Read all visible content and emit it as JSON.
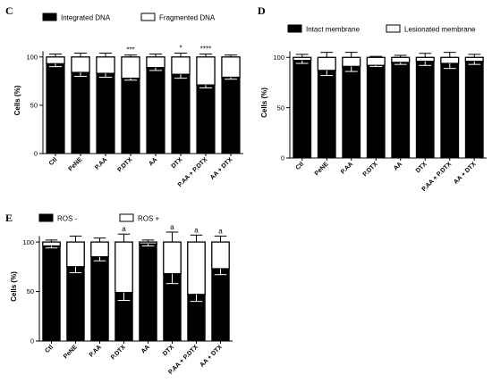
{
  "panels": [
    {
      "letter": "C",
      "chart_data": {
        "type": "bar",
        "stacked": true,
        "categories": [
          "Ctl",
          "PeNE",
          "P.AA",
          "P.DTX",
          "AA",
          "DTX",
          "P.AA + P.DTX",
          "AA + DTX"
        ],
        "series": [
          {
            "name": "Integrated DNA",
            "color": "#000000",
            "values": [
              93,
              84,
              83,
              78,
              89,
              82,
              71,
              79
            ],
            "error": [
              3,
              4,
              4,
              2,
              3,
              4,
              3,
              2
            ]
          },
          {
            "name": "Fragmented DNA",
            "color": "#ffffff",
            "values": [
              7,
              16,
              17,
              22,
              11,
              18,
              29,
              21
            ],
            "error": [
              3,
              4,
              4,
              2,
              3,
              4,
              3,
              2
            ]
          }
        ],
        "annotations": [
          "",
          "",
          "",
          "***",
          "",
          "*",
          "****",
          ""
        ],
        "ylabel": "Cells (%)",
        "yticks": [
          0,
          50,
          100
        ],
        "ylim": [
          0,
          110
        ],
        "legend_position": "top"
      }
    },
    {
      "letter": "D",
      "chart_data": {
        "type": "bar",
        "stacked": true,
        "categories": [
          "Ctl",
          "PeNE",
          "P.AA",
          "P.DTX",
          "AA",
          "DTX",
          "P.AA + P.DTX",
          "AA + DTX"
        ],
        "series": [
          {
            "name": "Intact membrane",
            "color": "#000000",
            "values": [
              97,
              87,
              91,
              92,
              95,
              96,
              94,
              96
            ],
            "error": [
              3,
              5,
              5,
              1,
              2,
              4,
              5,
              3
            ]
          },
          {
            "name": "Lesionated membrane",
            "color": "#ffffff",
            "values": [
              3,
              13,
              9,
              8,
              5,
              4,
              6,
              4
            ],
            "error": [
              3,
              5,
              5,
              1,
              2,
              4,
              5,
              3
            ]
          }
        ],
        "annotations": [
          "",
          "",
          "",
          "",
          "",
          "",
          "",
          ""
        ],
        "ylabel": "Cells (%)",
        "yticks": [
          0,
          50,
          100
        ],
        "ylim": [
          0,
          110
        ],
        "legend_position": "top"
      }
    },
    {
      "letter": "E",
      "chart_data": {
        "type": "bar",
        "stacked": true,
        "categories": [
          "Ctl",
          "PeNE",
          "P.AA",
          "P.DTX",
          "AA",
          "DTX",
          "P.AA + P.DTX",
          "AA + DTX"
        ],
        "series": [
          {
            "name": "ROS -",
            "color": "#000000",
            "values": [
              96,
              75,
              85,
              49,
              98,
              68,
              47,
              73
            ],
            "error": [
              2,
              6,
              4,
              8,
              2,
              10,
              7,
              6
            ]
          },
          {
            "name": "ROS +",
            "color": "#ffffff",
            "values": [
              4,
              25,
              15,
              51,
              2,
              32,
              53,
              27
            ],
            "error": [
              2,
              6,
              4,
              8,
              2,
              10,
              7,
              6
            ]
          }
        ],
        "annotations": [
          "",
          "",
          "",
          "a",
          "",
          "a",
          "a",
          "a"
        ],
        "ylabel": "Cells (%)",
        "yticks": [
          0,
          50,
          100
        ],
        "ylim": [
          0,
          110
        ],
        "legend_position": "top"
      }
    }
  ]
}
